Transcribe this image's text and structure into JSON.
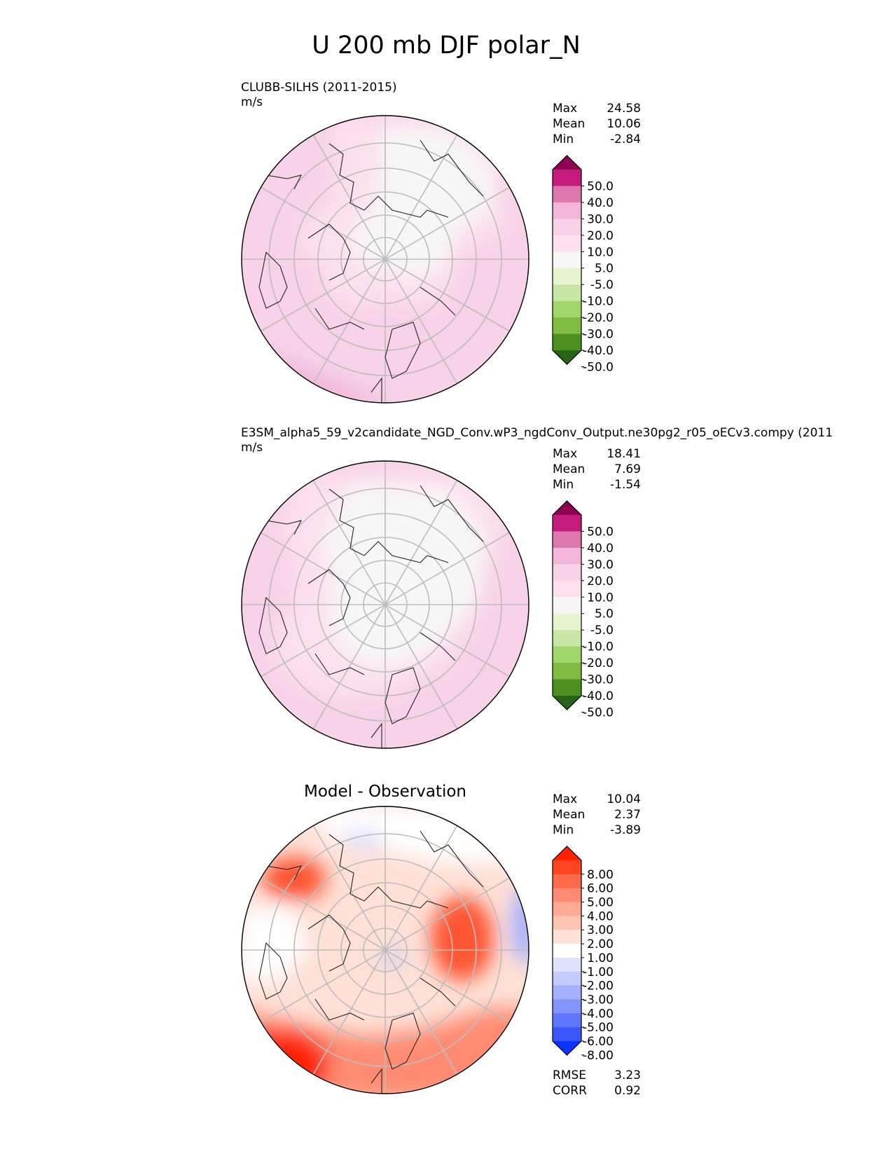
{
  "figure": {
    "title": "U 200 mb DJF polar_N"
  },
  "chart_data": [
    {
      "type": "heatmap",
      "projection": "north-polar-stereographic",
      "title": "CLUBB-SILHS (2011-2015)",
      "units": "m/s",
      "stats": [
        {
          "label": "Max",
          "value": "24.58"
        },
        {
          "label": "Mean",
          "value": "10.06"
        },
        {
          "label": "Min",
          "value": "-2.84"
        }
      ],
      "colorbar": {
        "tick_labels": [
          "50.0",
          "40.0",
          "30.0",
          "20.0",
          "10.0",
          "5.0",
          "-5.0",
          "-10.0",
          "-20.0",
          "-30.0",
          "-40.0",
          "-50.0"
        ],
        "colors": [
          "#8e0152",
          "#c51b7d",
          "#de77ae",
          "#f1b6da",
          "#f7d2e8",
          "#fde0ef",
          "#f7f7f7",
          "#e6f5d0",
          "#c8e7a4",
          "#a1d76a",
          "#7fbc41",
          "#4d9221",
          "#276419"
        ]
      }
    },
    {
      "type": "heatmap",
      "projection": "north-polar-stereographic",
      "title": "E3SM_alpha5_59_v2candidate_NGD_Conv.wP3_ngdConv_Output.ne30pg2_r05_oECv3.compy (2011",
      "units": "m/s",
      "stats": [
        {
          "label": "Max",
          "value": "18.41"
        },
        {
          "label": "Mean",
          "value": "7.69"
        },
        {
          "label": "Min",
          "value": "-1.54"
        }
      ],
      "colorbar": {
        "tick_labels": [
          "50.0",
          "40.0",
          "30.0",
          "20.0",
          "10.0",
          "5.0",
          "-5.0",
          "-10.0",
          "-20.0",
          "-30.0",
          "-40.0",
          "-50.0"
        ],
        "colors": [
          "#8e0152",
          "#c51b7d",
          "#de77ae",
          "#f1b6da",
          "#f7d2e8",
          "#fde0ef",
          "#f7f7f7",
          "#e6f5d0",
          "#c8e7a4",
          "#a1d76a",
          "#7fbc41",
          "#4d9221",
          "#276419"
        ]
      }
    },
    {
      "type": "heatmap",
      "projection": "north-polar-stereographic",
      "title": "Model - Observation",
      "units": "",
      "stats": [
        {
          "label": "Max",
          "value": "10.04"
        },
        {
          "label": "Mean",
          "value": "2.37"
        },
        {
          "label": "Min",
          "value": "-3.89"
        }
      ],
      "footer": [
        {
          "label": "RMSE",
          "value": "3.23"
        },
        {
          "label": "CORR",
          "value": "0.92"
        }
      ],
      "colorbar": {
        "tick_labels": [
          "8.00",
          "6.00",
          "5.00",
          "4.00",
          "3.00",
          "2.00",
          "1.00",
          "-1.00",
          "-2.00",
          "-3.00",
          "-4.00",
          "-5.00",
          "-6.00",
          "-8.00"
        ],
        "colors": [
          "#ff2200",
          "#ff4422",
          "#ff6a4c",
          "#ff8c72",
          "#ffaa94",
          "#ffc5b4",
          "#ffe0d6",
          "#ffffff",
          "#dfe3ff",
          "#c3cbff",
          "#a4b0ff",
          "#8494ff",
          "#6076ff",
          "#3b57ff",
          "#0a33ff"
        ]
      }
    }
  ]
}
